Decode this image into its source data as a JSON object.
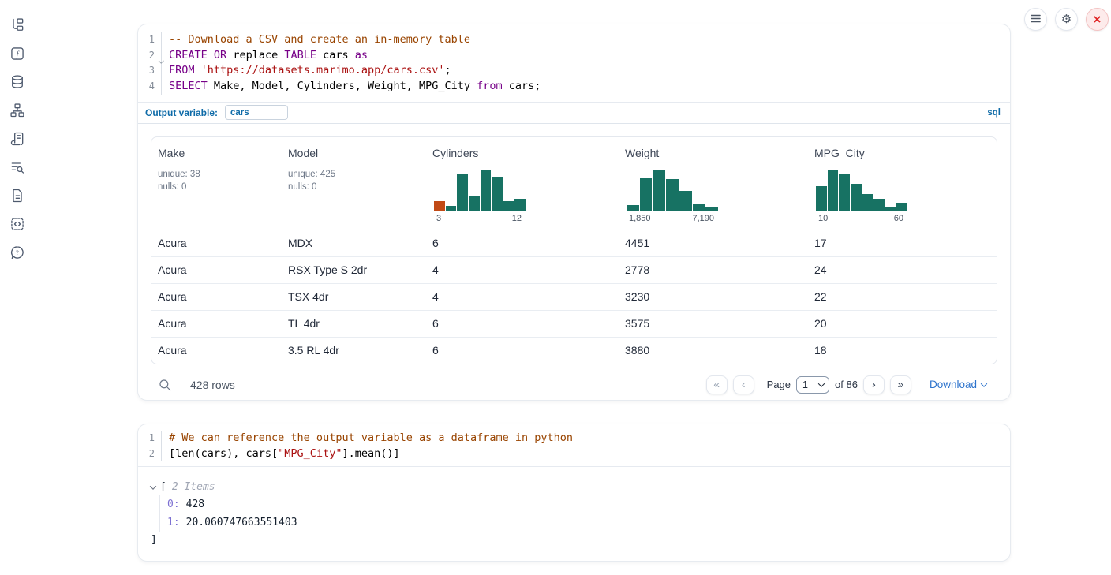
{
  "sidebar": {
    "icons": [
      "file-tree",
      "function-square",
      "database",
      "dependency-graph",
      "logs-scroll",
      "list-search",
      "file-text",
      "code-snippets",
      "help-bubble"
    ]
  },
  "topbar": {
    "icons": [
      "menu",
      "settings",
      "shutdown"
    ],
    "shutdown_glyph": "×"
  },
  "cells": [
    {
      "language": "sql",
      "lines": [
        {
          "n": "1",
          "tokens": [
            {
              "t": "-- Download a CSV and create an in-memory table",
              "c": "com"
            }
          ]
        },
        {
          "n": "2",
          "fold": true,
          "tokens": [
            {
              "t": "CREATE",
              "c": "kw"
            },
            {
              "t": " ",
              "c": "pl"
            },
            {
              "t": "OR",
              "c": "kw"
            },
            {
              "t": " replace ",
              "c": "pl"
            },
            {
              "t": "TABLE",
              "c": "kw"
            },
            {
              "t": " cars ",
              "c": "pl"
            },
            {
              "t": "as",
              "c": "kw"
            }
          ]
        },
        {
          "n": "3",
          "tokens": [
            {
              "t": "FROM",
              "c": "kw"
            },
            {
              "t": " ",
              "c": "pl"
            },
            {
              "t": "'https://datasets.marimo.app/cars.csv'",
              "c": "str"
            },
            {
              "t": ";",
              "c": "pl"
            }
          ]
        },
        {
          "n": "4",
          "tokens": [
            {
              "t": "SELECT",
              "c": "kw"
            },
            {
              "t": " Make, Model, Cylinders, Weight, MPG_City ",
              "c": "pl"
            },
            {
              "t": "from",
              "c": "kw"
            },
            {
              "t": " cars;",
              "c": "pl"
            }
          ]
        }
      ],
      "outvar": {
        "label": "Output variable:",
        "value": "cars",
        "lang_badge": "sql"
      },
      "table": {
        "columns": [
          {
            "name": "Make",
            "unique": "unique: 38",
            "nulls": "nulls: 0"
          },
          {
            "name": "Model",
            "unique": "unique: 425",
            "nulls": "nulls: 0"
          },
          {
            "name": "Cylinders",
            "hist": {
              "min_label": "3",
              "max_label": "12",
              "bars": [
                {
                  "v": 0.25,
                  "c": "#c14a16"
                },
                {
                  "v": 0.14
                },
                {
                  "v": 0.9
                },
                {
                  "v": 0.39
                },
                {
                  "v": 1
                },
                {
                  "v": 0.84
                },
                {
                  "v": 0.25
                },
                {
                  "v": 0.31
                }
              ]
            }
          },
          {
            "name": "Weight",
            "hist": {
              "min_label": "1,850",
              "max_label": "7,190",
              "bars": [
                {
                  "v": 0.15
                },
                {
                  "v": 0.8
                },
                {
                  "v": 1
                },
                {
                  "v": 0.78
                },
                {
                  "v": 0.5
                },
                {
                  "v": 0.17
                },
                {
                  "v": 0.12
                }
              ]
            }
          },
          {
            "name": "MPG_City",
            "hist": {
              "min_label": "10",
              "max_label": "60",
              "bars": [
                {
                  "v": 0.62
                },
                {
                  "v": 1
                },
                {
                  "v": 0.92
                },
                {
                  "v": 0.68
                },
                {
                  "v": 0.42
                },
                {
                  "v": 0.3
                },
                {
                  "v": 0.12
                },
                {
                  "v": 0.22
                }
              ]
            }
          }
        ],
        "rows": [
          [
            "Acura",
            "MDX",
            "6",
            "4451",
            "17"
          ],
          [
            "Acura",
            "RSX Type S 2dr",
            "4",
            "2778",
            "24"
          ],
          [
            "Acura",
            "TSX 4dr",
            "4",
            "3230",
            "22"
          ],
          [
            "Acura",
            "TL 4dr",
            "6",
            "3575",
            "20"
          ],
          [
            "Acura",
            "3.5 RL 4dr",
            "6",
            "3880",
            "18"
          ]
        ],
        "footer": {
          "row_count": "428 rows",
          "pager": {
            "first": "«",
            "prev": "‹",
            "next": "›",
            "last": "»"
          },
          "page_label": "Page",
          "page_value": "1",
          "of_label": "of 86",
          "download_label": "Download"
        }
      }
    },
    {
      "language": "python",
      "lines": [
        {
          "n": "1",
          "tokens": [
            {
              "t": "# We can reference the output variable as a dataframe in python",
              "c": "com"
            }
          ]
        },
        {
          "n": "2",
          "tokens": [
            {
              "t": "[len(cars), cars[",
              "c": "pl"
            },
            {
              "t": "\"MPG_City\"",
              "c": "str"
            },
            {
              "t": "].mean()]",
              "c": "pl"
            }
          ]
        }
      ],
      "output_tree": {
        "open_bracket": "[",
        "items_label": "2 Items",
        "items": [
          {
            "key": "0:",
            "value": "428"
          },
          {
            "key": "1:",
            "value": "20.060747663551403"
          }
        ],
        "close_bracket": "]"
      }
    }
  ],
  "colors": {
    "accent_blue": "#0e6ba8",
    "link_blue": "#2b72cc",
    "hist_teal": "#177263",
    "hist_orange": "#c14a16",
    "danger": "#e02424"
  }
}
